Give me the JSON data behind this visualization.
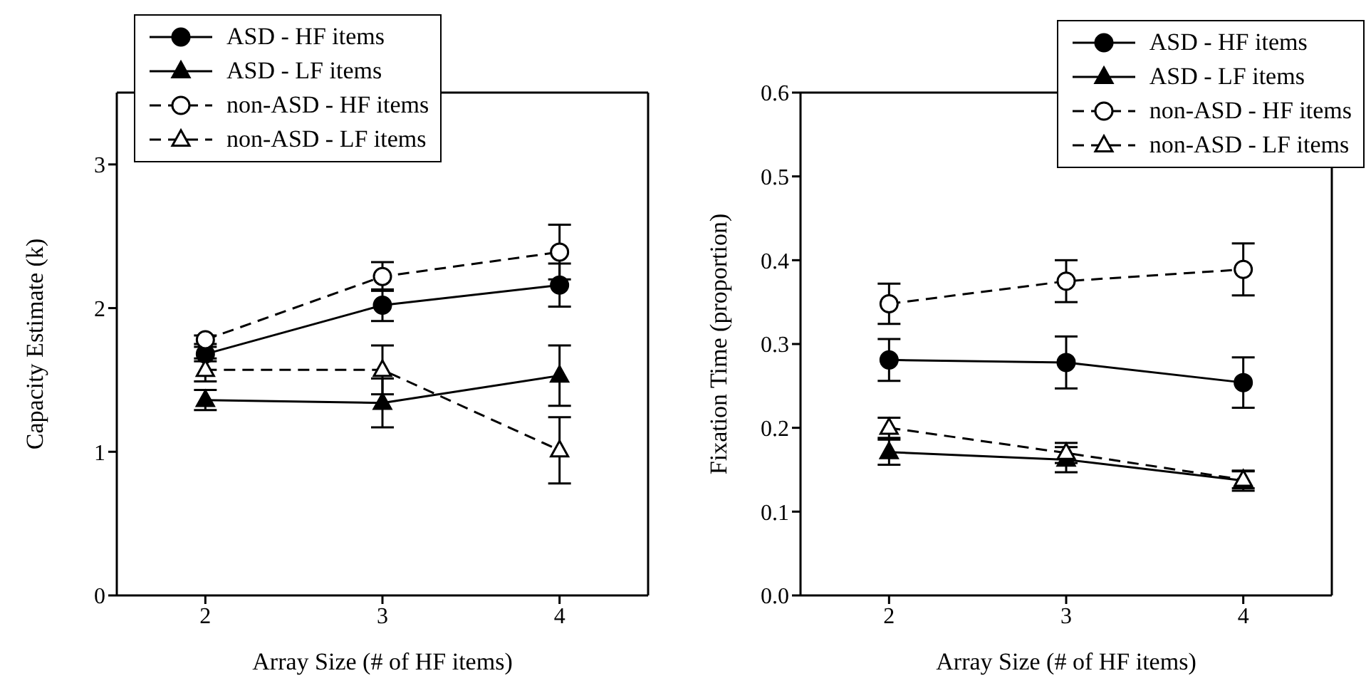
{
  "chart_data": [
    {
      "type": "line",
      "xlabel": "Array Size (# of HF items)",
      "ylabel": "Capacity Estimate (k)",
      "x": [
        2,
        3,
        4
      ],
      "xlim": [
        1.5,
        4.5
      ],
      "xticks": [
        2,
        3,
        4
      ],
      "ylim": [
        0,
        3.5
      ],
      "yticks": [
        0,
        1,
        2,
        3
      ],
      "legend": "top left",
      "series": [
        {
          "name": "ASD - HF items",
          "color": "#000000",
          "values": [
            1.68,
            2.02,
            2.16
          ],
          "errors": [
            0.05,
            0.11,
            0.15
          ],
          "marker": "circle",
          "line_style": "solid"
        },
        {
          "name": "ASD - LF items",
          "color": "#000000",
          "values": [
            1.36,
            1.34,
            1.53
          ],
          "errors": [
            0.07,
            0.17,
            0.21
          ],
          "marker": "triangle",
          "line_style": "solid"
        },
        {
          "name": "non-ASD - HF items",
          "color": "#000000",
          "values": [
            1.78,
            2.22,
            2.39
          ],
          "errors": [
            0.03,
            0.1,
            0.19
          ],
          "marker": "circle",
          "line_style": "dashed"
        },
        {
          "name": "non-ASD - LF items",
          "color": "#000000",
          "values": [
            1.57,
            1.57,
            1.01
          ],
          "errors": [
            0.08,
            0.17,
            0.23
          ],
          "marker": "triangle",
          "line_style": "dashed"
        }
      ]
    },
    {
      "type": "line",
      "xlabel": "Array Size (# of HF items)",
      "ylabel": "Fixation Time (proportion)",
      "x": [
        2,
        3,
        4
      ],
      "xlim": [
        1.5,
        4.5
      ],
      "xticks": [
        2,
        3,
        4
      ],
      "ylim": [
        0,
        0.6
      ],
      "yticks": [
        {
          "value": 0,
          "label": "0.0"
        },
        {
          "value": 0.1,
          "label": "0.1"
        },
        {
          "value": 0.2,
          "label": "0.2"
        },
        {
          "value": 0.3,
          "label": "0.3"
        },
        {
          "value": 0.4,
          "label": "0.4"
        },
        {
          "value": 0.5,
          "label": "0.5"
        },
        {
          "value": 0.6,
          "label": "0.6"
        }
      ],
      "legend": "top right",
      "series": [
        {
          "name": "ASD - HF items",
          "color": "#000000",
          "values": [
            0.281,
            0.278,
            0.254
          ],
          "errors": [
            0.025,
            0.031,
            0.03
          ],
          "marker": "circle",
          "line_style": "solid"
        },
        {
          "name": "ASD - LF items",
          "color": "#000000",
          "values": [
            0.171,
            0.162,
            0.137
          ],
          "errors": [
            0.015,
            0.015,
            0.012
          ],
          "marker": "triangle",
          "line_style": "solid"
        },
        {
          "name": "non-ASD - HF items",
          "color": "#000000",
          "values": [
            0.348,
            0.375,
            0.389
          ],
          "errors": [
            0.024,
            0.025,
            0.031
          ],
          "marker": "circle",
          "line_style": "dashed"
        },
        {
          "name": "non-ASD - LF items",
          "color": "#000000",
          "values": [
            0.2,
            0.17,
            0.138
          ],
          "errors": [
            0.012,
            0.012,
            0.01
          ],
          "marker": "triangle",
          "line_style": "dashed"
        }
      ]
    }
  ]
}
